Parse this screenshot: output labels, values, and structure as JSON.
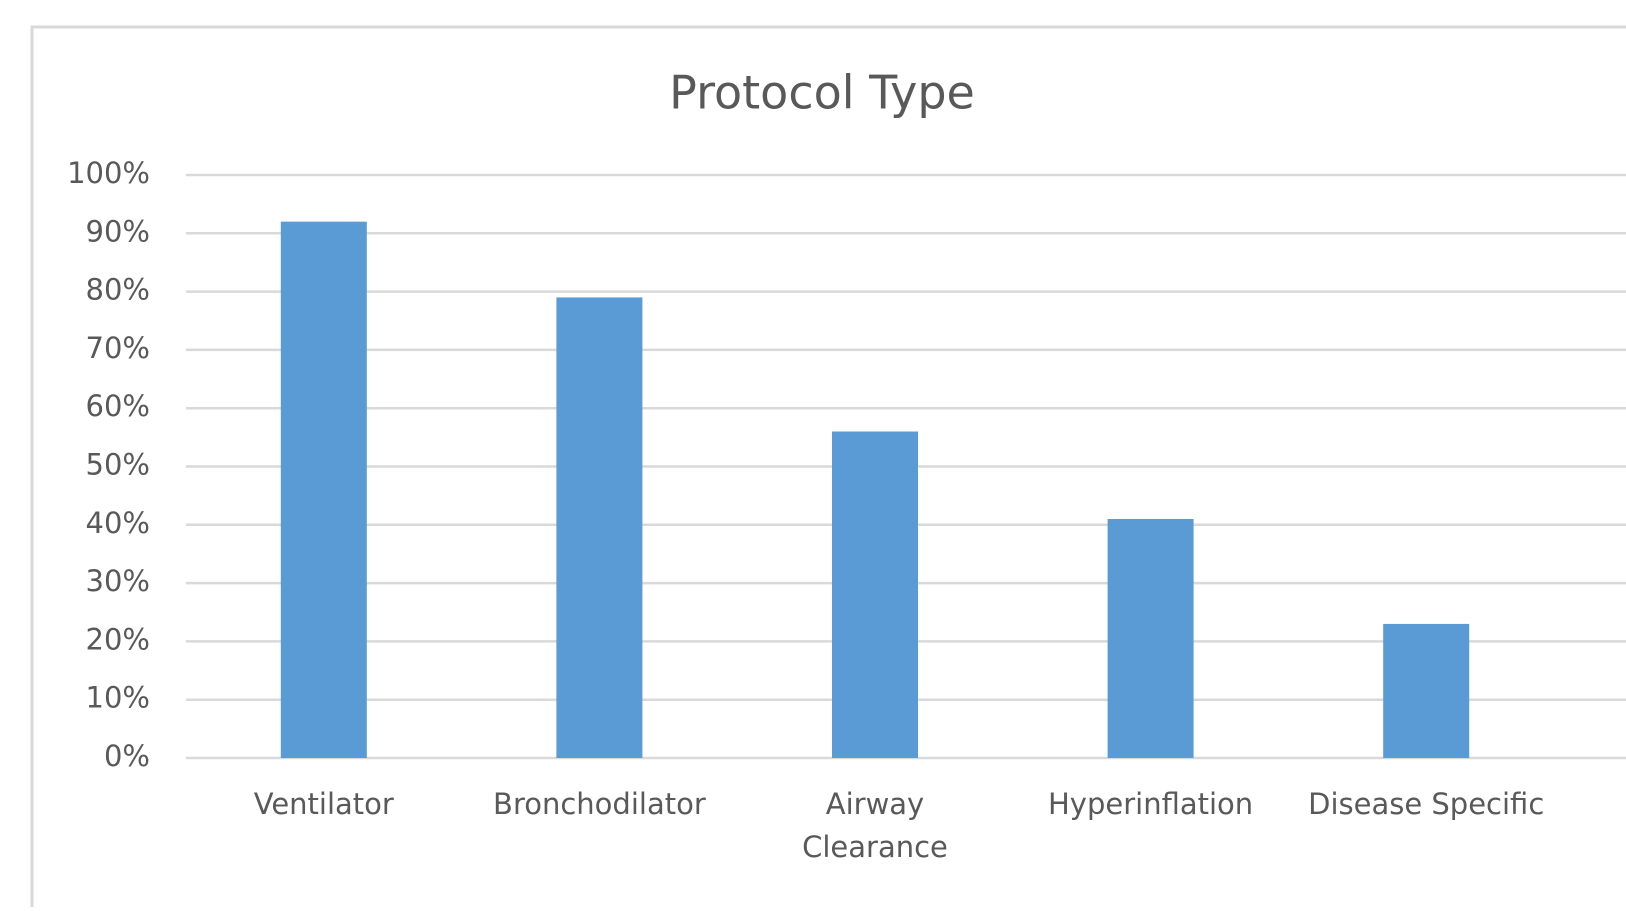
{
  "chart_data": {
    "type": "bar",
    "title": "Protocol Type",
    "categories": [
      "Ventilator",
      "Bronchodilator",
      "Airway\nClearance",
      "Hyperinflation",
      "Disease Specific"
    ],
    "values": [
      92,
      79,
      56,
      41,
      23
    ],
    "color": "#5b9bd5",
    "ylim": [
      0,
      100
    ],
    "yticks": [
      {
        "value": 0,
        "label": "0%"
      },
      {
        "value": 10,
        "label": "10%"
      },
      {
        "value": 20,
        "label": "20%"
      },
      {
        "value": 30,
        "label": "30%"
      },
      {
        "value": 40,
        "label": "40%"
      },
      {
        "value": 50,
        "label": "50%"
      },
      {
        "value": 60,
        "label": "60%"
      },
      {
        "value": 70,
        "label": "70%"
      },
      {
        "value": 80,
        "label": "80%"
      },
      {
        "value": 90,
        "label": "90%"
      },
      {
        "value": 100,
        "label": "100%"
      }
    ],
    "grid": true
  }
}
